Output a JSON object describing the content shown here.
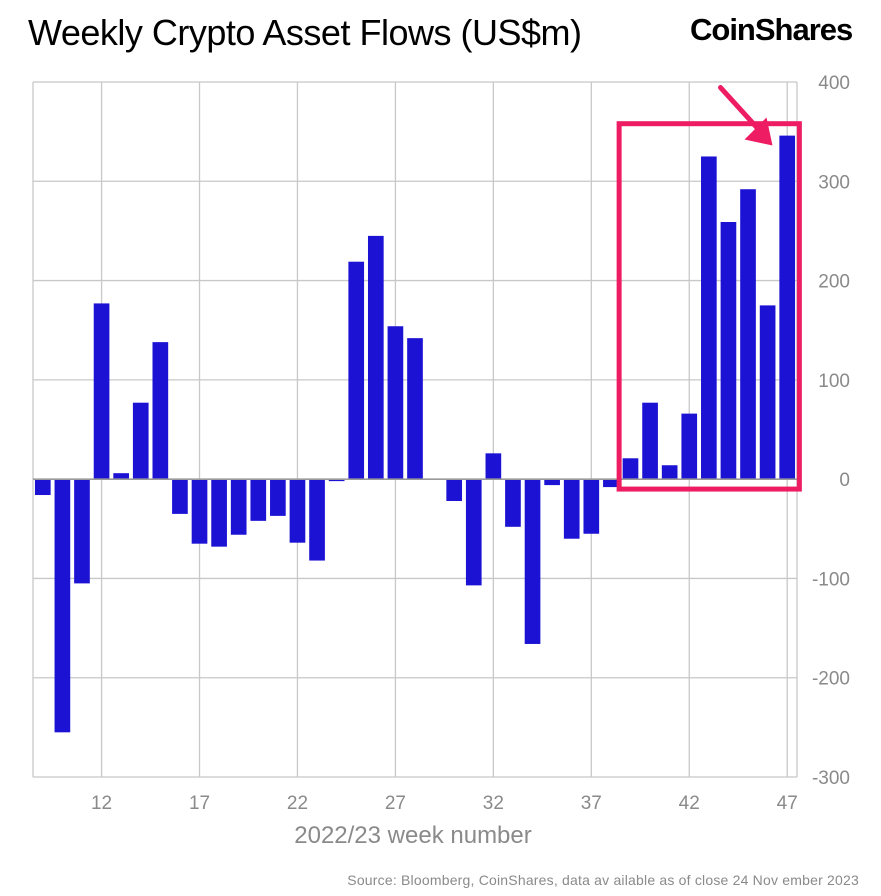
{
  "title": "Weekly Crypto Asset Flows (US$m)",
  "brand": "CoinShares",
  "source": "Source: Bloomberg, CoinShares, data av ailable as of close 24 Nov ember 2023",
  "colors": {
    "bar": "#1c12d4",
    "highlight": "#ee1c62",
    "grid": "#c8c8c8",
    "axis_text": "#8a8a8a"
  },
  "chart_data": {
    "type": "bar",
    "title": "Weekly Crypto Asset Flows (US$m)",
    "xlabel": "2022/23 week number",
    "ylabel": "",
    "ylim": [
      -300,
      400
    ],
    "yticks": [
      400,
      300,
      200,
      100,
      0,
      -100,
      -200,
      -300
    ],
    "y_axis_side": "right",
    "x": [
      9,
      10,
      11,
      12,
      13,
      14,
      15,
      16,
      17,
      18,
      19,
      20,
      21,
      22,
      23,
      24,
      25,
      26,
      27,
      28,
      29,
      30,
      31,
      32,
      33,
      34,
      35,
      36,
      37,
      38,
      39,
      40,
      41,
      42,
      43,
      44,
      45,
      46,
      47
    ],
    "xtick_labels": [
      "12",
      "17",
      "22",
      "27",
      "32",
      "37",
      "42",
      "47"
    ],
    "values": [
      -16,
      -255,
      -105,
      177,
      6,
      77,
      138,
      -35,
      -65,
      -68,
      -56,
      -42,
      -37,
      -64,
      -82,
      -2,
      219,
      245,
      154,
      142,
      0,
      -22,
      -107,
      26,
      -48,
      -166,
      -6,
      -60,
      -55,
      -8,
      21,
      77,
      14,
      66,
      325,
      259,
      292,
      175,
      346
    ],
    "grid": true,
    "annotation": {
      "type": "highlight-box",
      "from_week": 39,
      "to_week": 47,
      "arrow_to_week": 47
    }
  }
}
